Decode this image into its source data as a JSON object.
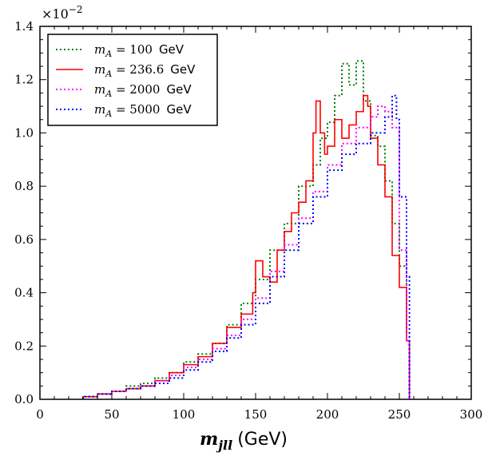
{
  "chart_data": {
    "type": "line",
    "title": "",
    "xlabel": "m_{jll} (GeV)",
    "xlabel_math": "m",
    "xlabel_sub": "jll",
    "xlabel_unit": "(GeV)",
    "ylabel": "",
    "xlim": [
      0,
      300
    ],
    "ylim": [
      0.0,
      1.4
    ],
    "y_scale_label": "×10",
    "y_scale_exp": "−2",
    "x_ticks": [
      "0",
      "50",
      "100",
      "150",
      "200",
      "250",
      "300"
    ],
    "y_ticks": [
      "0.0",
      "0.2",
      "0.4",
      "0.6",
      "0.8",
      "1.0",
      "1.2",
      "1.4"
    ],
    "legend_placement": "top-left",
    "grid": false,
    "series": [
      {
        "name": "m_A = 100  GeV",
        "legend_math": "m",
        "legend_sub": "A",
        "legend_value": " = 100",
        "legend_unit": "GeV",
        "color": "#008000",
        "style": "dotted",
        "x": [
          30,
          40,
          50,
          60,
          70,
          80,
          90,
          100,
          110,
          120,
          130,
          140,
          150,
          160,
          170,
          180,
          190,
          195,
          200,
          205,
          210,
          215,
          220,
          225,
          230,
          235,
          240,
          245,
          250,
          255,
          257
        ],
        "y": [
          0.01,
          0.02,
          0.03,
          0.05,
          0.06,
          0.08,
          0.1,
          0.14,
          0.17,
          0.21,
          0.28,
          0.36,
          0.45,
          0.56,
          0.66,
          0.8,
          0.88,
          0.98,
          1.04,
          1.14,
          1.26,
          1.18,
          1.27,
          1.12,
          0.99,
          0.95,
          0.82,
          0.66,
          0.5,
          0.25,
          0.0
        ]
      },
      {
        "name": "m_A = 236.6  GeV",
        "legend_math": "m",
        "legend_sub": "A",
        "legend_value": " = 236.6",
        "legend_unit": "GeV",
        "color": "#ff0000",
        "style": "solid",
        "x": [
          30,
          40,
          50,
          60,
          70,
          80,
          90,
          100,
          110,
          120,
          130,
          140,
          148,
          150,
          155,
          160,
          165,
          170,
          175,
          180,
          185,
          190,
          192,
          195,
          198,
          200,
          205,
          210,
          215,
          220,
          225,
          228,
          230,
          235,
          240,
          245,
          250,
          255,
          257
        ],
        "y": [
          0.01,
          0.02,
          0.03,
          0.04,
          0.05,
          0.07,
          0.1,
          0.13,
          0.16,
          0.21,
          0.27,
          0.32,
          0.4,
          0.52,
          0.46,
          0.44,
          0.56,
          0.63,
          0.7,
          0.74,
          0.82,
          1.0,
          1.12,
          1.0,
          0.92,
          0.95,
          1.05,
          0.98,
          1.03,
          1.08,
          1.14,
          1.1,
          0.98,
          0.88,
          0.76,
          0.54,
          0.42,
          0.22,
          0.0
        ]
      },
      {
        "name": "m_A = 2000  GeV",
        "legend_math": "m",
        "legend_sub": "A",
        "legend_value": " = 2000",
        "legend_unit": "GeV",
        "color": "#ff00ff",
        "style": "dotted",
        "x": [
          30,
          40,
          50,
          60,
          70,
          80,
          90,
          100,
          110,
          120,
          130,
          140,
          150,
          160,
          170,
          180,
          190,
          200,
          210,
          220,
          230,
          235,
          240,
          245,
          250,
          255,
          257
        ],
        "y": [
          0.01,
          0.02,
          0.03,
          0.04,
          0.05,
          0.07,
          0.09,
          0.12,
          0.15,
          0.19,
          0.24,
          0.3,
          0.38,
          0.48,
          0.58,
          0.68,
          0.78,
          0.88,
          0.96,
          1.02,
          1.06,
          1.1,
          1.08,
          1.02,
          0.56,
          0.22,
          0.0
        ]
      },
      {
        "name": "m_A = 5000  GeV",
        "legend_math": "m",
        "legend_sub": "A",
        "legend_value": " = 5000",
        "legend_unit": "GeV",
        "color": "#0000ff",
        "style": "dotted",
        "x": [
          30,
          40,
          50,
          60,
          70,
          80,
          90,
          100,
          110,
          120,
          130,
          140,
          150,
          160,
          170,
          180,
          190,
          200,
          210,
          220,
          230,
          240,
          245,
          248,
          250,
          255,
          257
        ],
        "y": [
          0.01,
          0.02,
          0.03,
          0.04,
          0.05,
          0.06,
          0.08,
          0.11,
          0.14,
          0.18,
          0.23,
          0.28,
          0.36,
          0.46,
          0.56,
          0.66,
          0.76,
          0.86,
          0.92,
          0.96,
          1.0,
          1.06,
          1.14,
          1.05,
          0.76,
          0.46,
          0.0
        ]
      }
    ]
  }
}
